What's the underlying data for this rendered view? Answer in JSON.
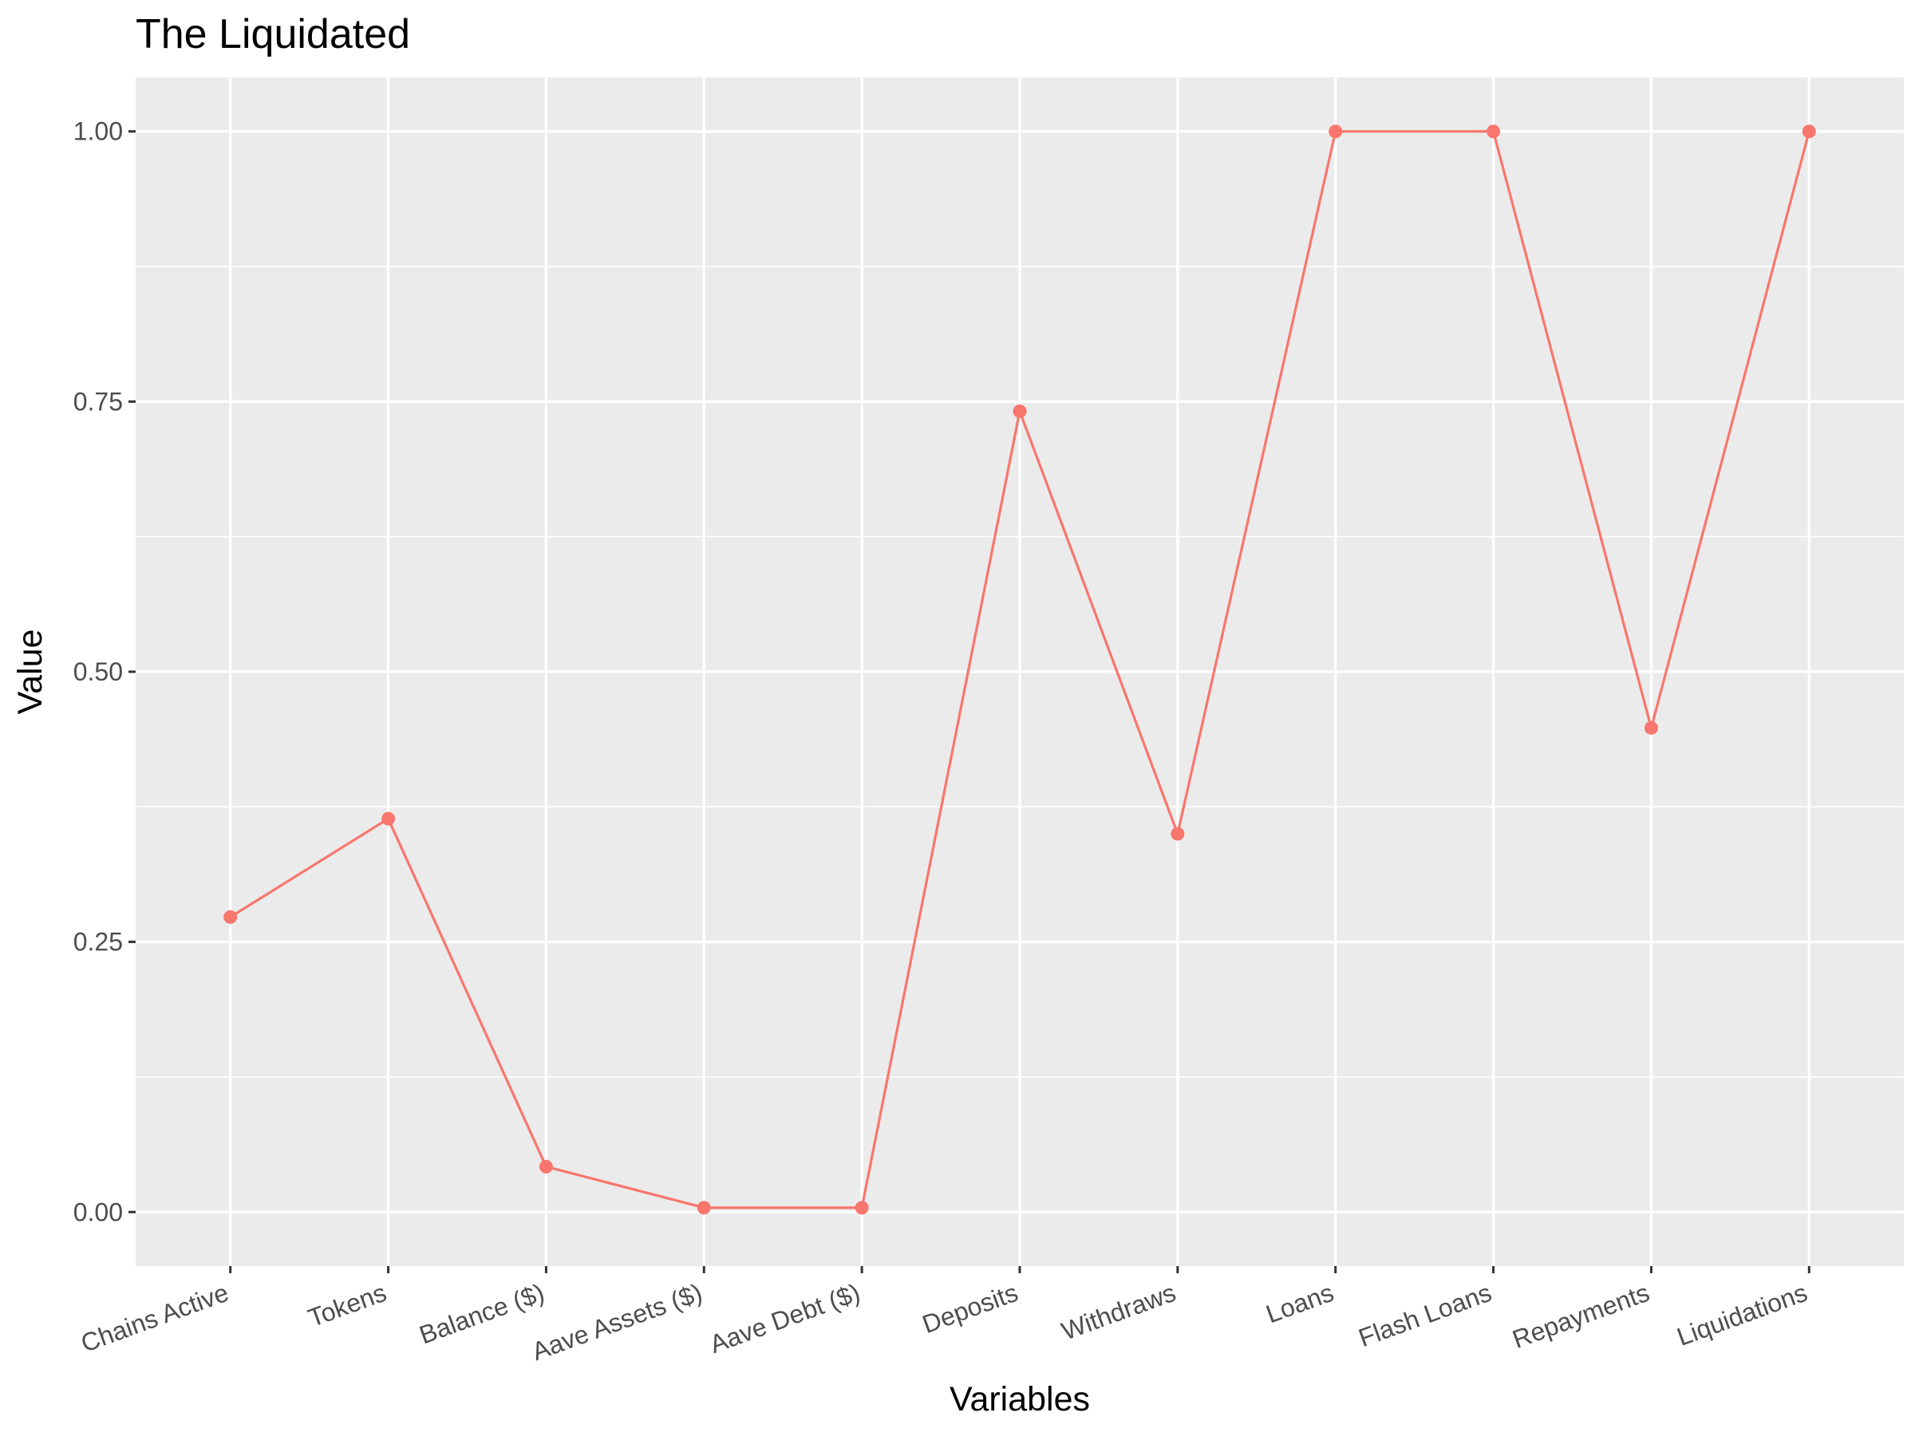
{
  "chart_data": {
    "type": "line",
    "title": "The Liquidated",
    "xlabel": "Variables",
    "ylabel": "Value",
    "categories": [
      "Chains Active",
      "Tokens",
      "Balance ($)",
      "Aave Assets ($)",
      "Aave Debt ($)",
      "Deposits",
      "Withdraws",
      "Loans",
      "Flash Loans",
      "Repayments",
      "Liquidations"
    ],
    "series": [
      {
        "values": [
          0.273,
          0.364,
          0.042,
          0.004,
          0.004,
          0.741,
          0.35,
          1.0,
          1.0,
          0.448,
          1.0
        ],
        "color": "#f8766d"
      }
    ],
    "ylim": [
      -0.05,
      1.05
    ],
    "yticks": [
      0.0,
      0.25,
      0.5,
      0.75,
      1.0
    ],
    "ytick_labels": [
      "0.00",
      "0.25",
      "0.50",
      "0.75",
      "1.00"
    ],
    "grid": true,
    "panel_background": "#ebebeb",
    "legend": "none",
    "xtick_rotation_deg": 20
  }
}
